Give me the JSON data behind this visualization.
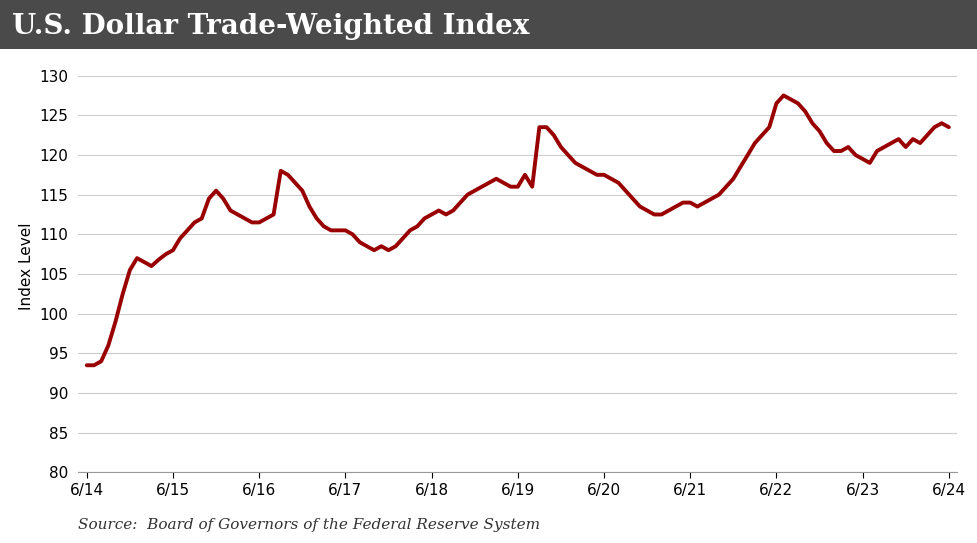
{
  "title": "U.S. Dollar Trade-Weighted Index",
  "title_bg_color": "#4a4a4a",
  "title_text_color": "#ffffff",
  "line_color": "#990000",
  "line_width": 2.8,
  "ylabel": "Index Level",
  "source_text": "Source:  Board of Governors of the Federal Reserve System",
  "ylim": [
    80,
    132
  ],
  "yticks": [
    80,
    85,
    90,
    95,
    100,
    105,
    110,
    115,
    120,
    125,
    130
  ],
  "xtick_labels": [
    "6/14",
    "6/15",
    "6/16",
    "6/17",
    "6/18",
    "6/19",
    "6/20",
    "6/21",
    "6/22",
    "6/23",
    "6/24"
  ],
  "background_color": "#ffffff",
  "grid_color": "#cccccc",
  "x_values": [
    0,
    0.083,
    0.167,
    0.25,
    0.333,
    0.417,
    0.5,
    0.583,
    0.667,
    0.75,
    0.833,
    0.917,
    1.0,
    1.083,
    1.167,
    1.25,
    1.333,
    1.417,
    1.5,
    1.583,
    1.667,
    1.75,
    1.833,
    1.917,
    2.0,
    2.083,
    2.167,
    2.25,
    2.333,
    2.417,
    2.5,
    2.583,
    2.667,
    2.75,
    2.833,
    2.917,
    3.0,
    3.083,
    3.167,
    3.25,
    3.333,
    3.417,
    3.5,
    3.583,
    3.667,
    3.75,
    3.833,
    3.917,
    4.0,
    4.083,
    4.167,
    4.25,
    4.333,
    4.417,
    4.5,
    4.583,
    4.667,
    4.75,
    4.833,
    4.917,
    5.0,
    5.083,
    5.167,
    5.25,
    5.333,
    5.417,
    5.5,
    5.583,
    5.667,
    5.75,
    5.833,
    5.917,
    6.0,
    6.083,
    6.167,
    6.25,
    6.333,
    6.417,
    6.5,
    6.583,
    6.667,
    6.75,
    6.833,
    6.917,
    7.0,
    7.083,
    7.167,
    7.25,
    7.333,
    7.417,
    7.5,
    7.583,
    7.667,
    7.75,
    7.833,
    7.917,
    8.0,
    8.083,
    8.167,
    8.25,
    8.333,
    8.417,
    8.5,
    8.583,
    8.667,
    8.75,
    8.833,
    8.917,
    9.0,
    9.083,
    9.167,
    9.25,
    9.333,
    9.417,
    9.5,
    9.583,
    9.667,
    9.75,
    9.833,
    9.917,
    10.0
  ],
  "y_values": [
    93.5,
    93.5,
    94.0,
    96.0,
    99.0,
    102.5,
    105.5,
    107.0,
    106.5,
    106.0,
    106.8,
    107.5,
    108.0,
    109.5,
    110.5,
    111.5,
    112.0,
    114.5,
    115.5,
    114.5,
    113.0,
    112.5,
    112.0,
    111.5,
    111.5,
    112.0,
    112.5,
    118.0,
    117.5,
    116.5,
    115.5,
    113.5,
    112.0,
    111.0,
    110.5,
    110.5,
    110.5,
    110.0,
    109.0,
    108.5,
    108.0,
    108.5,
    108.0,
    108.5,
    109.5,
    110.5,
    111.0,
    112.0,
    112.5,
    113.0,
    112.5,
    113.0,
    114.0,
    115.0,
    115.5,
    116.0,
    116.5,
    117.0,
    116.5,
    116.0,
    116.0,
    117.5,
    116.0,
    123.5,
    123.5,
    122.5,
    121.0,
    120.0,
    119.0,
    118.5,
    118.0,
    117.5,
    117.5,
    117.0,
    116.5,
    115.5,
    114.5,
    113.5,
    113.0,
    112.5,
    112.5,
    113.0,
    113.5,
    114.0,
    114.0,
    113.5,
    114.0,
    114.5,
    115.0,
    116.0,
    117.0,
    118.5,
    120.0,
    121.5,
    122.5,
    123.5,
    126.5,
    127.5,
    127.0,
    126.5,
    125.5,
    124.0,
    123.0,
    121.5,
    120.5,
    120.5,
    121.0,
    120.0,
    119.5,
    119.0,
    120.5,
    121.0,
    121.5,
    122.0,
    121.0,
    122.0,
    121.5,
    122.5,
    123.5,
    124.0,
    123.5
  ]
}
